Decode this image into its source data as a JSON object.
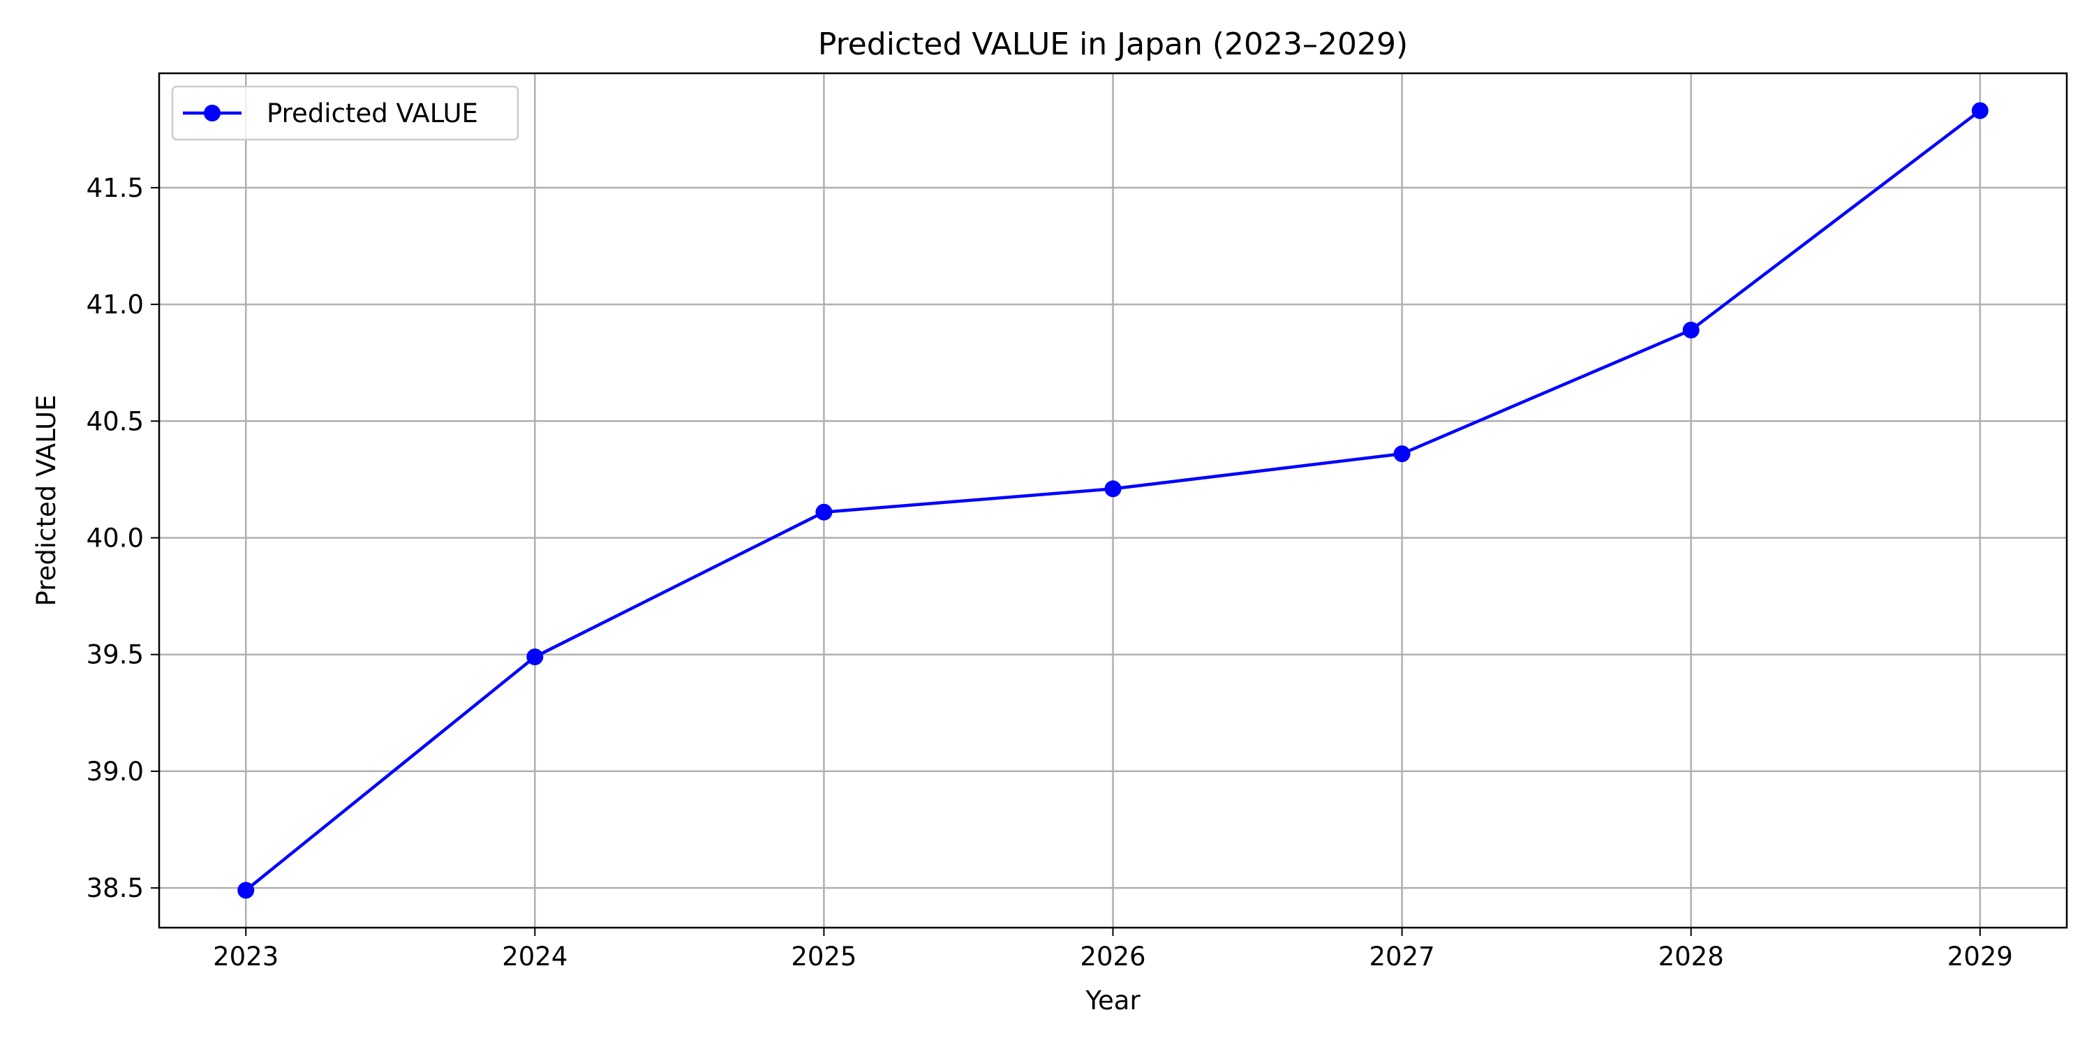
{
  "chart_data": {
    "type": "line",
    "title": "Predicted VALUE in Japan (2023–2029)",
    "xlabel": "Year",
    "ylabel": "Predicted VALUE",
    "x": [
      2023,
      2024,
      2025,
      2026,
      2027,
      2028,
      2029
    ],
    "x_tick_labels": [
      "2023",
      "2024",
      "2025",
      "2026",
      "2027",
      "2028",
      "2029"
    ],
    "y_ticks": [
      38.5,
      39.0,
      39.5,
      40.0,
      40.5,
      41.0,
      41.5
    ],
    "y_tick_labels": [
      "38.5",
      "39.0",
      "39.5",
      "40.0",
      "40.5",
      "41.0",
      "41.5"
    ],
    "xlim": [
      2022.7,
      2029.3
    ],
    "ylim": [
      38.33,
      41.99
    ],
    "grid": true,
    "legend_position": "top-left",
    "series": [
      {
        "name": "Predicted VALUE",
        "color": "#0000ff",
        "marker": "circle",
        "values": [
          38.49,
          39.49,
          40.11,
          40.21,
          40.36,
          40.89,
          41.83
        ]
      }
    ]
  }
}
